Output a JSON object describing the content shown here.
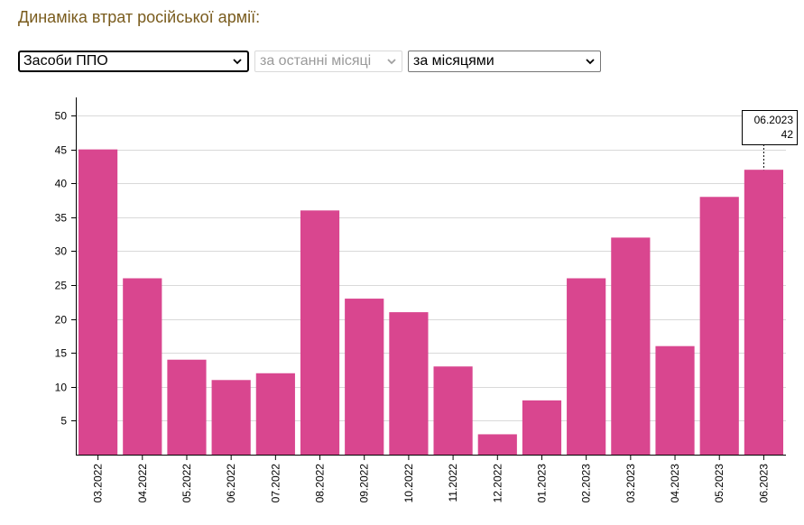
{
  "page": {
    "heading": "Динаміка втрат російської армії:"
  },
  "controls": {
    "weapon_select": {
      "value": "Засоби ППО"
    },
    "period_select": {
      "value": "за останні місяці"
    },
    "grouping_select": {
      "value": "за місяцями"
    }
  },
  "tooltip": {
    "label": "06.2023",
    "value": "42"
  },
  "colors": {
    "bar": "#d9468f",
    "heading": "#7a5c1e",
    "grid": "#d9d9d9"
  },
  "chart_data": {
    "type": "bar",
    "categories": [
      "03.2022",
      "04.2022",
      "05.2022",
      "06.2022",
      "07.2022",
      "08.2022",
      "09.2022",
      "10.2022",
      "11.2022",
      "12.2022",
      "01.2023",
      "02.2023",
      "03.2023",
      "04.2023",
      "05.2023",
      "06.2023"
    ],
    "values": [
      45,
      26,
      14,
      11,
      12,
      36,
      23,
      21,
      13,
      3,
      8,
      26,
      32,
      16,
      38,
      42
    ],
    "yticks": [
      5,
      10,
      15,
      20,
      25,
      30,
      35,
      40,
      45,
      50
    ],
    "ylim": [
      0,
      52
    ],
    "grid": true,
    "title": "",
    "xlabel": "",
    "ylabel": ""
  }
}
